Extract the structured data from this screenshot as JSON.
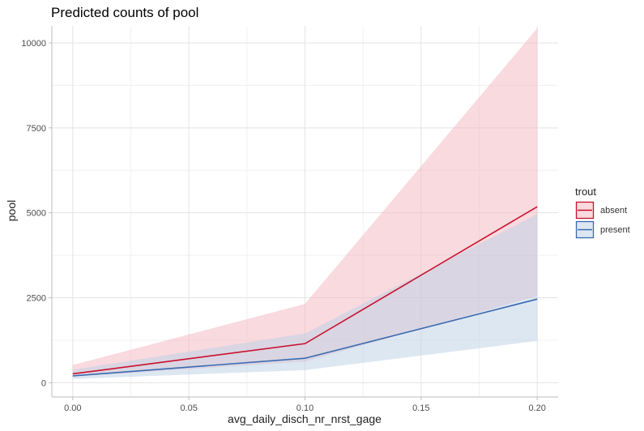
{
  "chart_data": {
    "type": "line",
    "title": "Predicted counts of pool",
    "xlabel": "avg_daily_disch_nr_nrst_gage",
    "ylabel": "pool",
    "xlim": [
      0.0,
      0.2
    ],
    "ylim": [
      0,
      10500
    ],
    "x_ticks": [
      0.0,
      0.05,
      0.1,
      0.15,
      0.2
    ],
    "x_tick_labels": [
      "0.00",
      "0.05",
      "0.10",
      "0.15",
      "0.20"
    ],
    "y_ticks": [
      0,
      2500,
      5000,
      7500,
      10000
    ],
    "y_tick_labels": [
      "0",
      "2500",
      "5000",
      "7500",
      "10000"
    ],
    "grid": true,
    "legend": {
      "title": "trout",
      "position": "right"
    },
    "x": [
      0.0,
      0.1,
      0.2
    ],
    "series": [
      {
        "name": "absent",
        "color": "#c8102e",
        "fill": "#f4b6bd",
        "values": [
          260,
          1150,
          5180
        ],
        "lower": [
          180,
          620,
          2550
        ],
        "upper": [
          520,
          2320,
          10430
        ]
      },
      {
        "name": "present",
        "color": "#3a6ab0",
        "fill": "#bcd0e6",
        "values": [
          200,
          720,
          2460
        ],
        "lower": [
          110,
          370,
          1230
        ],
        "upper": [
          380,
          1450,
          4960
        ]
      }
    ]
  }
}
